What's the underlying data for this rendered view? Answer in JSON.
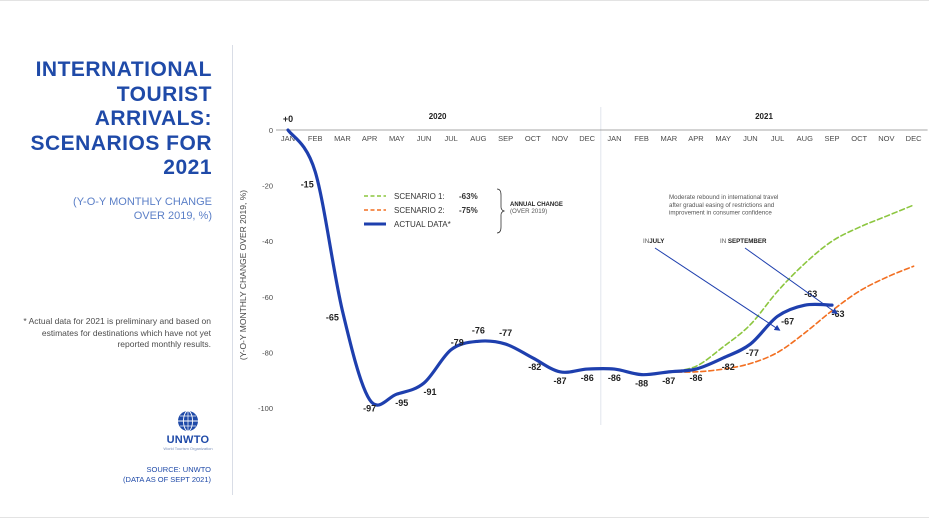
{
  "title_lines": [
    "INTERNATIONAL",
    "TOURIST",
    "ARRIVALS:",
    "SCENARIOS FOR",
    "2021"
  ],
  "subtitle_lines": [
    "(Y-O-Y MONTHLY CHANGE",
    "OVER 2019, %)"
  ],
  "footnote": "* Actual data for 2021 is preliminary and based on estimates for destinations which have not yet reported monthly results.",
  "logo": {
    "name": "UNWTO",
    "tagline": "World Tourism Organization"
  },
  "source_lines": [
    "SOURCE: UNWTO",
    "(DATA AS OF SEPT 2021)"
  ],
  "colors": {
    "brand": "#1f4aa8",
    "actual": "#1e3fae",
    "scenario1": "#8cc63f",
    "scenario2": "#f26f21"
  },
  "chart_data": {
    "type": "line",
    "ylabel": "(Y-O-Y MONTHLY CHANGE OVER 2019, %)",
    "ylim": [
      -100,
      0
    ],
    "yticks": [
      0,
      -20,
      -40,
      -60,
      -80,
      -100
    ],
    "years": [
      "2020",
      "2021"
    ],
    "x": [
      "JAN",
      "FEB",
      "MAR",
      "APR",
      "MAY",
      "JUN",
      "JUL",
      "AUG",
      "SEP",
      "OCT",
      "NOV",
      "DEC",
      "JAN",
      "FEB",
      "MAR",
      "APR",
      "MAY",
      "JUN",
      "JUL",
      "AUG",
      "SEP",
      "OCT",
      "NOV",
      "DEC"
    ],
    "series": [
      {
        "name": "ACTUAL DATA*",
        "style": "solid",
        "color": "#1e3fae",
        "values": [
          0,
          -15,
          -65,
          -97,
          -95,
          -91,
          -79,
          -76,
          -77,
          -82,
          -87,
          -86,
          -86,
          -88,
          -87,
          -86,
          -82,
          -77,
          -67,
          -63,
          -63,
          null,
          null,
          null
        ],
        "labels": [
          "+0",
          "-15",
          "-65",
          "-97",
          "-95",
          "-91",
          "-79",
          "-76",
          "-77",
          "-82",
          "-87",
          "-86",
          "-86",
          "-88",
          "-87",
          "-86",
          "-82",
          "-77",
          "-67",
          "-63",
          "-63",
          null,
          null,
          null
        ]
      },
      {
        "name": "SCENARIO 1:",
        "annual_change": "-63%",
        "style": "dashed",
        "color": "#8cc63f",
        "values": [
          null,
          null,
          null,
          null,
          null,
          null,
          null,
          null,
          null,
          null,
          null,
          null,
          null,
          null,
          -87,
          -85,
          -78,
          -70,
          -58,
          -48,
          -40,
          -35,
          -31,
          -27
        ]
      },
      {
        "name": "SCENARIO 2:",
        "annual_change": "-75%",
        "style": "dashed",
        "color": "#f26f21",
        "values": [
          null,
          null,
          null,
          null,
          null,
          null,
          null,
          null,
          null,
          null,
          null,
          null,
          null,
          null,
          -87,
          -87,
          -86,
          -84,
          -80,
          -73,
          -65,
          -58,
          -53,
          -49
        ]
      }
    ],
    "legend_group_label_lines": [
      "ANNUAL CHANGE",
      "(OVER 2019)"
    ],
    "annotation_lines": [
      "Moderate rebound in international travel",
      "after gradual easing of restrictions and",
      "improvement in consumer confidence"
    ],
    "callouts": [
      {
        "prefix": "IN",
        "emphasis": "JULY"
      },
      {
        "prefix": "IN",
        "emphasis": "SEPTEMBER"
      }
    ]
  }
}
